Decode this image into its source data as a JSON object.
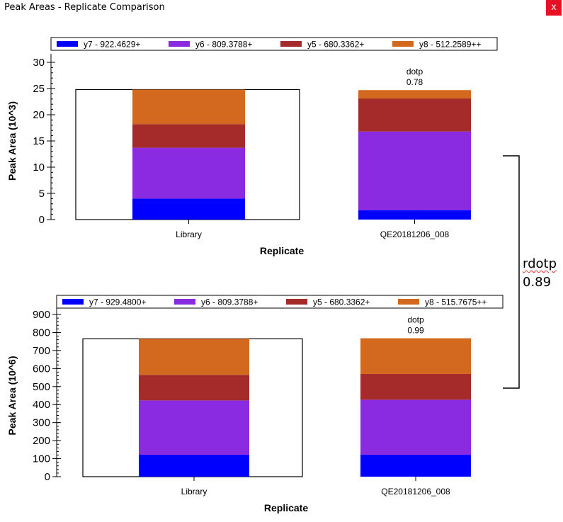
{
  "window": {
    "title": "Peak Areas - Replicate Comparison",
    "close_label": "x"
  },
  "annotation": {
    "label": "rdotp",
    "value": "0.89"
  },
  "chart_data": [
    {
      "type": "bar",
      "stacked": true,
      "xlabel": "Replicate",
      "ylabel": "Peak Area (10^3)",
      "ylim": [
        0,
        30
      ],
      "yticks": [
        0,
        5,
        10,
        15,
        20,
        25,
        30
      ],
      "categories": [
        "Library",
        "QE20181206_008"
      ],
      "series": [
        {
          "name": "y7 - 922.4629+",
          "color": "#0000ff",
          "values": [
            4.0,
            1.8
          ]
        },
        {
          "name": "y6 - 809.3788+",
          "color": "#8a2be2",
          "values": [
            9.7,
            15.0
          ]
        },
        {
          "name": "y5 - 680.3362+",
          "color": "#a52a2a",
          "values": [
            4.5,
            6.3
          ]
        },
        {
          "name": "y8 - 512.2589++",
          "color": "#d2691e",
          "values": [
            6.6,
            1.6
          ]
        }
      ],
      "library_box_total": 24.8,
      "bar_annotations": [
        {
          "category": "QE20181206_008",
          "label": "dotp",
          "value": "0.78"
        }
      ],
      "legend_position": "top"
    },
    {
      "type": "bar",
      "stacked": true,
      "xlabel": "Replicate",
      "ylabel": "Peak Area (10^6)",
      "ylim": [
        0,
        900
      ],
      "yticks": [
        0,
        100,
        200,
        300,
        400,
        500,
        600,
        700,
        800,
        900
      ],
      "categories": [
        "Library",
        "QE20181206_008"
      ],
      "series": [
        {
          "name": "y7 - 929.4800+",
          "color": "#0000ff",
          "values": [
            122,
            122
          ]
        },
        {
          "name": "y6 - 809.3788+",
          "color": "#8a2be2",
          "values": [
            301,
            305
          ]
        },
        {
          "name": "y5 - 680.3362+",
          "color": "#a52a2a",
          "values": [
            142,
            143
          ]
        },
        {
          "name": "y8 - 515.7675++",
          "color": "#d2691e",
          "values": [
            200,
            198
          ]
        }
      ],
      "library_box_total": 765,
      "bar_annotations": [
        {
          "category": "QE20181206_008",
          "label": "dotp",
          "value": "0.99"
        }
      ],
      "legend_position": "top"
    }
  ]
}
